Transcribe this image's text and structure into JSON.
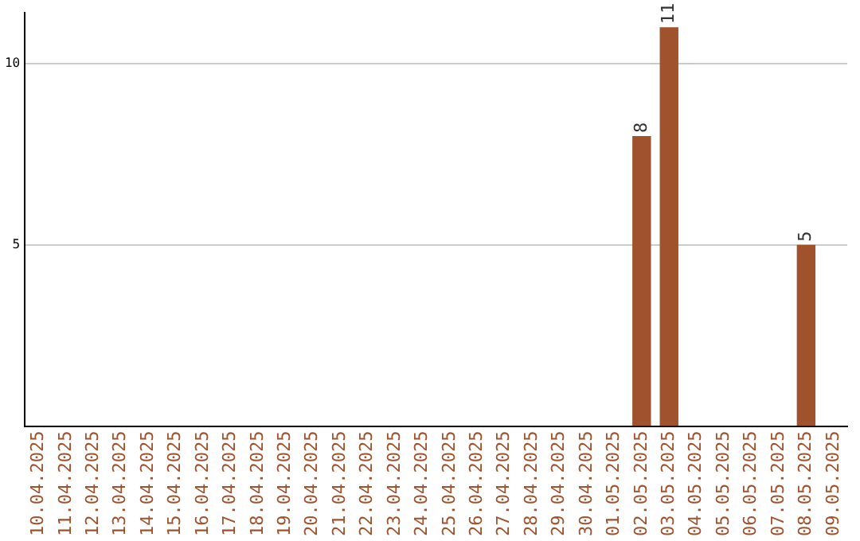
{
  "chart_data": {
    "type": "bar",
    "categories": [
      "10.04.2025",
      "11.04.2025",
      "12.04.2025",
      "13.04.2025",
      "14.04.2025",
      "15.04.2025",
      "16.04.2025",
      "17.04.2025",
      "18.04.2025",
      "19.04.2025",
      "20.04.2025",
      "21.04.2025",
      "22.04.2025",
      "23.04.2025",
      "24.04.2025",
      "25.04.2025",
      "26.04.2025",
      "27.04.2025",
      "28.04.2025",
      "29.04.2025",
      "30.04.2025",
      "01.05.2025",
      "02.05.2025",
      "03.05.2025",
      "04.05.2025",
      "05.05.2025",
      "06.05.2025",
      "07.05.2025",
      "08.05.2025",
      "09.05.2025"
    ],
    "values": [
      0,
      0,
      0,
      0,
      0,
      0,
      0,
      0,
      0,
      0,
      0,
      0,
      0,
      0,
      0,
      0,
      0,
      0,
      0,
      0,
      0,
      0,
      8,
      11,
      0,
      0,
      0,
      0,
      5,
      0
    ],
    "value_labels": [
      null,
      null,
      null,
      null,
      null,
      null,
      null,
      null,
      null,
      null,
      null,
      null,
      null,
      null,
      null,
      null,
      null,
      null,
      null,
      null,
      null,
      null,
      "8",
      "11",
      null,
      null,
      null,
      null,
      "5",
      null
    ],
    "color": "#a0522d",
    "ylim": [
      0,
      11.4
    ],
    "yticks": [
      5,
      10
    ],
    "grid": "y",
    "legend": false
  }
}
